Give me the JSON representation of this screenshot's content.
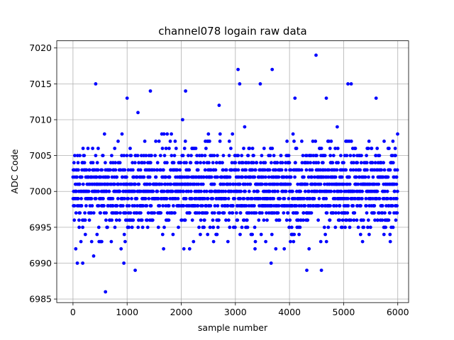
{
  "chart_data": {
    "type": "scatter",
    "title": "channel078 logain raw data",
    "xlabel": "sample number",
    "ylabel": "ADC Code",
    "xlim": [
      -300,
      6200
    ],
    "ylim": [
      6984.5,
      7021
    ],
    "xticks": [
      0,
      1000,
      2000,
      3000,
      4000,
      5000,
      6000
    ],
    "yticks": [
      6985,
      6990,
      6995,
      7000,
      7005,
      7010,
      7015,
      7020
    ],
    "grid": true,
    "series_color": "#0000ff",
    "n_samples": 6000,
    "dense_band": [
      6992,
      7006
    ],
    "outliers": [
      {
        "x": 420,
        "y": 7015
      },
      {
        "x": 600,
        "y": 6986
      },
      {
        "x": 1150,
        "y": 6989
      },
      {
        "x": 1430,
        "y": 7014
      },
      {
        "x": 2080,
        "y": 7014
      },
      {
        "x": 3050,
        "y": 7017
      },
      {
        "x": 3080,
        "y": 7015
      },
      {
        "x": 3460,
        "y": 7015
      },
      {
        "x": 3680,
        "y": 7017
      },
      {
        "x": 3660,
        "y": 6990
      },
      {
        "x": 4320,
        "y": 6989
      },
      {
        "x": 4490,
        "y": 7019
      },
      {
        "x": 4590,
        "y": 6989
      },
      {
        "x": 5080,
        "y": 7015
      },
      {
        "x": 5140,
        "y": 7015
      },
      {
        "x": 180,
        "y": 6990
      },
      {
        "x": 80,
        "y": 6990
      },
      {
        "x": 940,
        "y": 6990
      },
      {
        "x": 1000,
        "y": 7013
      },
      {
        "x": 2700,
        "y": 7012
      },
      {
        "x": 4100,
        "y": 7013
      },
      {
        "x": 5600,
        "y": 7013
      },
      {
        "x": 4680,
        "y": 7013
      }
    ]
  }
}
